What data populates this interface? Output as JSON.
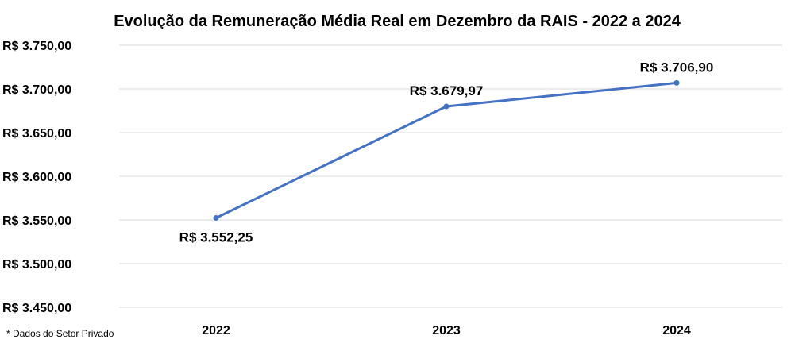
{
  "chart_data": {
    "type": "line",
    "title": "Evolução da Remuneração Média Real em Dezembro da RAIS - 2022 a 2024",
    "categories": [
      "2022",
      "2023",
      "2024"
    ],
    "series": [
      {
        "values": [
          3552.25,
          3679.97,
          3706.9
        ],
        "data_labels": [
          "R$ 3.552,25",
          "R$ 3.679,97",
          "R$ 3.706,90"
        ]
      }
    ],
    "ylim": [
      3450,
      3750
    ],
    "ytick_values": [
      3450,
      3500,
      3550,
      3600,
      3650,
      3700,
      3750
    ],
    "ytick_labels": [
      "R$ 3.450,00",
      "R$ 3.500,00",
      "R$ 3.550,00",
      "R$ 3.600,00",
      "R$ 3.650,00",
      "R$ 3.700,00",
      "R$ 3.750,00"
    ],
    "grid": true,
    "legend": "none",
    "colors": {
      "line": "#4472C4",
      "grid": "#D9D9D9",
      "text": "#000000"
    }
  },
  "footnote": "* Dados do Setor Privado"
}
